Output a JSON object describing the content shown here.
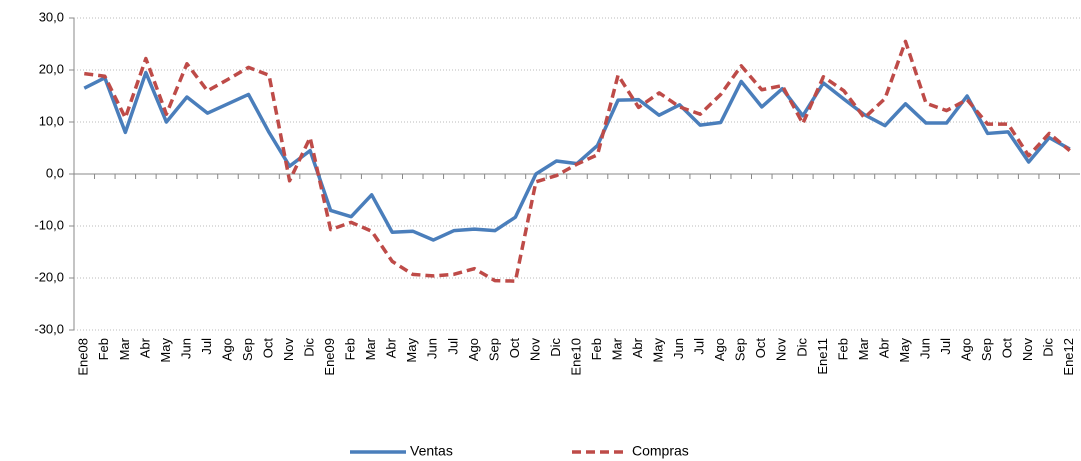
{
  "chart_data": {
    "type": "line",
    "categories": [
      "Ene08",
      "Feb",
      "Mar",
      "Abr",
      "May",
      "Jun",
      "Jul",
      "Ago",
      "Sep",
      "Oct",
      "Nov",
      "Dic",
      "Ene09",
      "Feb",
      "Mar",
      "Abr",
      "May",
      "Jun",
      "Jul",
      "Ago",
      "Sep",
      "Oct",
      "Nov",
      "Dic",
      "Ene10",
      "Feb",
      "Mar",
      "Abr",
      "May",
      "Jun",
      "Jul",
      "Ago",
      "Sep",
      "Oct",
      "Nov",
      "Dic",
      "Ene11",
      "Feb",
      "Mar",
      "Abr",
      "May",
      "Jun",
      "Jul",
      "Ago",
      "Sep",
      "Oct",
      "Nov",
      "Dic",
      "Ene12"
    ],
    "series": [
      {
        "name": "Ventas",
        "color": "#4a7ebb",
        "dash": false,
        "values": [
          16.5,
          18.5,
          8,
          19.5,
          10,
          14.8,
          11.7,
          13.5,
          15.3,
          8,
          1.5,
          4.5,
          -7,
          -8.2,
          -4,
          -11.2,
          -11,
          -12.7,
          -10.9,
          -10.6,
          -10.9,
          -8.3,
          0,
          2.5,
          2,
          5.5,
          14.2,
          14.3,
          11.3,
          13.3,
          9.4,
          9.9,
          17.8,
          12.9,
          16.4,
          11.2,
          17.5,
          14.4,
          11.4,
          9.3,
          13.5,
          9.8,
          9.8,
          15,
          7.8,
          8.1,
          2.3,
          7,
          4.8
        ]
      },
      {
        "name": "Compras",
        "color": "#be4b48",
        "dash": true,
        "values": [
          19.3,
          18.8,
          10.8,
          22.2,
          11.5,
          21.2,
          16,
          18.2,
          20.5,
          19,
          -1.3,
          7,
          -10.7,
          -9.3,
          -11,
          -16.8,
          -19.3,
          -19.6,
          -19.3,
          -18.2,
          -20.5,
          -20.6,
          -1.5,
          -0.3,
          1.9,
          3.7,
          19,
          12.8,
          15.6,
          12.9,
          11.5,
          15.3,
          20.8,
          16.2,
          17,
          9.7,
          18.7,
          16,
          10.8,
          14.5,
          25.5,
          13.6,
          12.2,
          14.3,
          9.6,
          9.6,
          3.5,
          7.8,
          4.5
        ]
      }
    ],
    "ylim": [
      -30,
      30
    ],
    "yticks": [
      {
        "value": -30,
        "label": "-30,0"
      },
      {
        "value": -20,
        "label": "-20,0"
      },
      {
        "value": -10,
        "label": "-10,0"
      },
      {
        "value": 0,
        "label": "0,0"
      },
      {
        "value": 10,
        "label": "10,0"
      },
      {
        "value": 20,
        "label": "20,0"
      },
      {
        "value": 30,
        "label": "30,0"
      }
    ],
    "grid": true,
    "legend": "bottom"
  }
}
